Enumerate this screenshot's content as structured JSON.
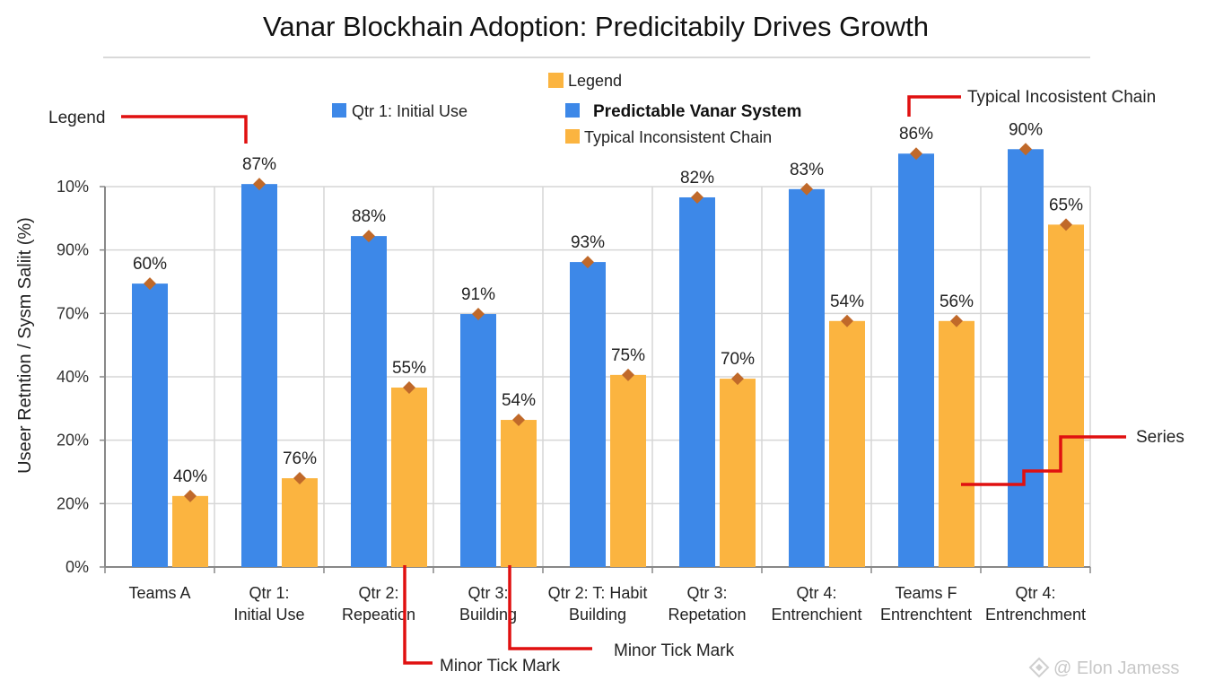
{
  "chart_data": {
    "type": "bar",
    "title": "Vanar Blockhain Adoption: Predicitabily Drives Growth",
    "xlabel": "",
    "ylabel": "Useer Retntion / Sysm Saliit (%)",
    "y_tick_labels": [
      "0%",
      "20%",
      "20%",
      "40%",
      "70%",
      "90%",
      "10%"
    ],
    "y_axis_note": "Tick labels are printed non-monotonically; bar values below are expressed in tick-index units (0 = bottom tick, 6 = top tick) as drawn, with printed data labels given separately.",
    "ylim_tick_index": [
      0,
      6
    ],
    "grid": true,
    "legend_position": "top-center",
    "categories": [
      "Teams A",
      "Qtr 1:\nInitial Use",
      "Qtr 2:\nRepeation",
      "Qtr 3:\nBuilding",
      "Qtr 2: T: Habit\nBuilding",
      "Qtr 3:\nRepetation",
      "Qtr 4:\nEntrenchient",
      "Teams F\nEntrenchtent",
      "Qtr 4:\nEntrenchment"
    ],
    "series": [
      {
        "name": "Predictable Vanar System",
        "color": "#3d88e8",
        "values_tick_index": [
          4.47,
          6.04,
          5.22,
          3.99,
          4.81,
          5.83,
          5.96,
          6.52,
          6.59
        ],
        "data_labels": [
          "60%",
          "87%",
          "88%",
          "91%",
          "93%",
          "82%",
          "83%",
          "86%",
          "90%"
        ]
      },
      {
        "name": "Typical Inconsistent Chain",
        "color": "#fbb440",
        "values_tick_index": [
          1.12,
          1.4,
          2.83,
          2.32,
          3.03,
          2.97,
          3.88,
          3.88,
          5.4
        ],
        "data_labels": [
          "40%",
          "76%",
          "55%",
          "54%",
          "75%",
          "70%",
          "54%",
          "56%",
          "65%"
        ]
      }
    ],
    "marker": {
      "shape": "diamond",
      "color": "#c0692a"
    },
    "legend": {
      "header_label": "Legend",
      "header_color": "#fbb440",
      "extra_entry": {
        "label": "Qtr 1: Initial Use",
        "color": "#3d88e8"
      },
      "entries": [
        {
          "label": "Predictable Vanar System",
          "color": "#3d88e8",
          "bold": true
        },
        {
          "label": "Typical Inconsistent Chain",
          "color": "#fbb440"
        }
      ]
    },
    "annotations": [
      {
        "text": "Legend",
        "target": "Qtr 1 blue bar label"
      },
      {
        "text": "Typical Incosistent Chain",
        "target": "Teams F blue bar label"
      },
      {
        "text": "Series",
        "target": "Teams F orange bar"
      },
      {
        "text": "Minor Tick Mark",
        "target": "x-axis between Qtr 2 and Qtr 3"
      },
      {
        "text": "Minor Tick Mark",
        "target": "x-axis between Qtr 3 and Qtr 2: Habit Building"
      }
    ],
    "annotation_color": "#e01010"
  },
  "watermark": {
    "icon": "binance-diamond-icon",
    "text": "@ Elon Jamess"
  }
}
